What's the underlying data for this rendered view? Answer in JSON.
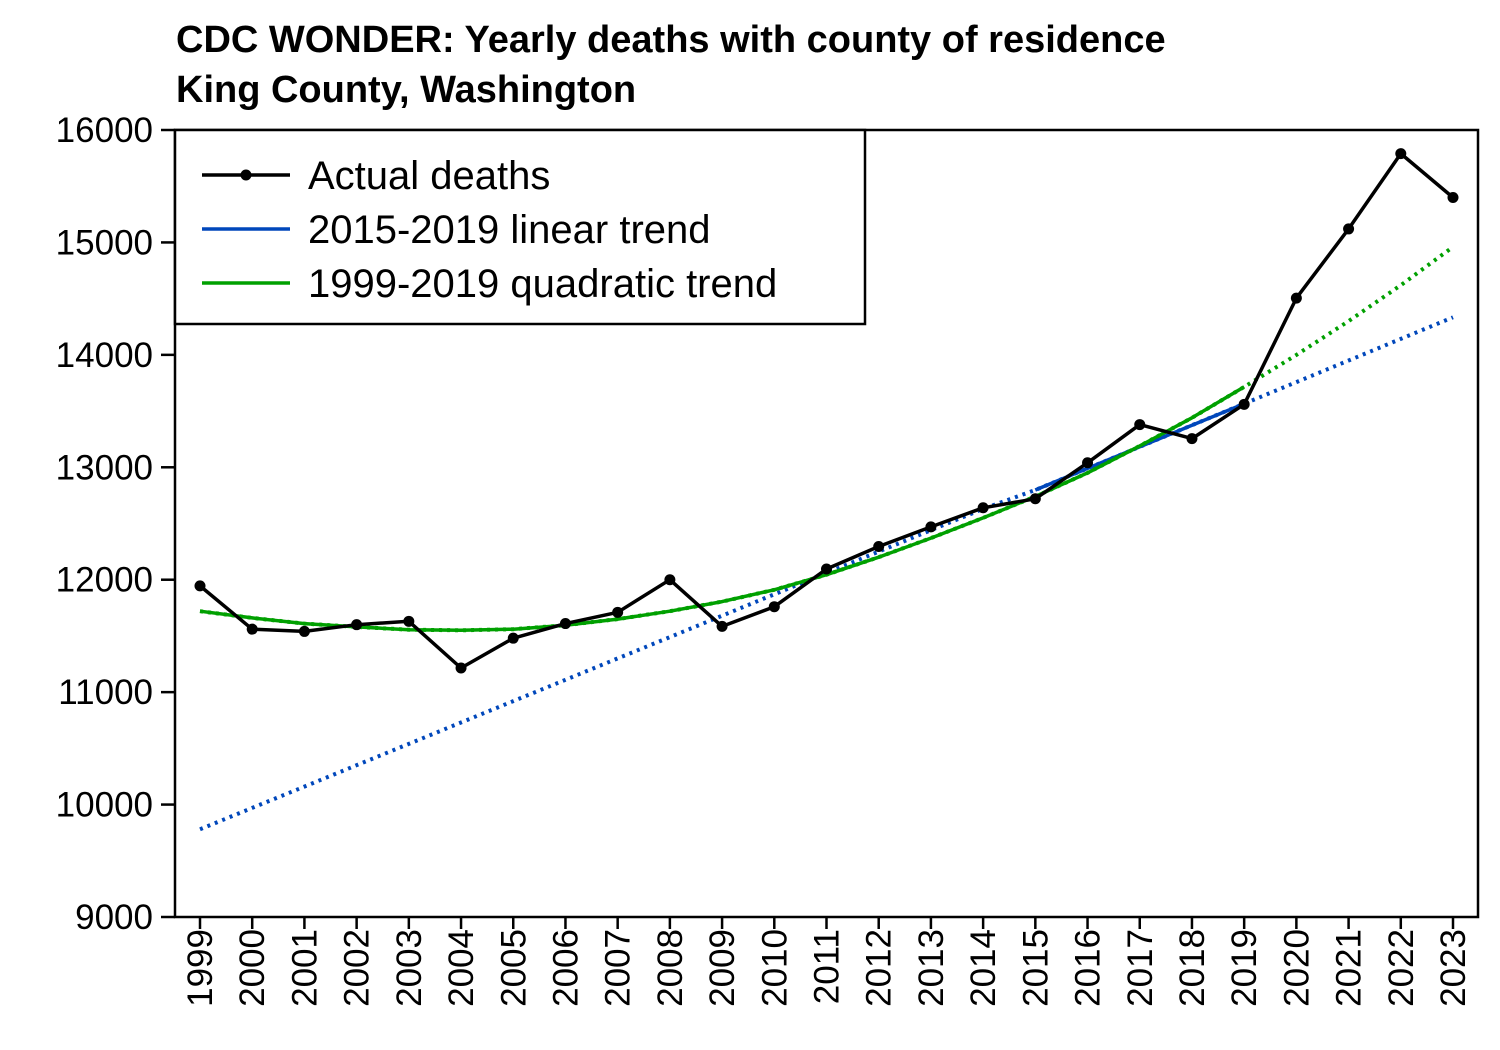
{
  "chart_data": {
    "type": "line",
    "title": "CDC WONDER: Yearly deaths with county of residence",
    "subtitle": "King County, Washington",
    "xlabel": "",
    "ylabel": "",
    "x": [
      1999,
      2000,
      2001,
      2002,
      2003,
      2004,
      2005,
      2006,
      2007,
      2008,
      2009,
      2010,
      2011,
      2012,
      2013,
      2014,
      2015,
      2016,
      2017,
      2018,
      2019,
      2020,
      2021,
      2022,
      2023
    ],
    "x_tick_labels": [
      "1999",
      "2000",
      "2001",
      "2002",
      "2003",
      "2004",
      "2005",
      "2006",
      "2007",
      "2008",
      "2009",
      "2010",
      "2011",
      "2012",
      "2013",
      "2014",
      "2015",
      "2016",
      "2017",
      "2018",
      "2019",
      "2020",
      "2021",
      "2022",
      "2023"
    ],
    "ylim": [
      9000,
      16000
    ],
    "y_ticks": [
      9000,
      10000,
      11000,
      12000,
      13000,
      14000,
      15000,
      16000
    ],
    "y_tick_labels": [
      "9000",
      "10000",
      "11000",
      "12000",
      "13000",
      "14000",
      "15000",
      "16000"
    ],
    "grid": false,
    "legend_position": "top-left",
    "series": [
      {
        "name": "Actual deaths",
        "color": "#000000",
        "style": "line-with-points",
        "values": [
          11945,
          11560,
          11540,
          11600,
          11630,
          11215,
          11480,
          11610,
          11710,
          12000,
          11585,
          11760,
          12095,
          12295,
          12470,
          12640,
          12720,
          13040,
          13380,
          13255,
          13560,
          14505,
          15120,
          15790,
          15400
        ]
      },
      {
        "name": "2015-2019 linear trend",
        "color": "#0047bb",
        "style": "solid-fit-dotted-extrapolation",
        "fit_range": [
          2015,
          2019
        ],
        "values": [
          9780,
          9970,
          10160,
          10350,
          10540,
          10730,
          10920,
          11110,
          11300,
          11490,
          11680,
          11870,
          12060,
          12250,
          12440,
          12630,
          12798,
          12990,
          13182,
          13374,
          13566,
          13758,
          13950,
          14142,
          14334
        ]
      },
      {
        "name": "1999-2019 quadratic trend",
        "color": "#00a000",
        "style": "solid-fit-dotted-extrapolation",
        "fit_range": [
          1999,
          2019
        ],
        "values": [
          11720,
          11660,
          11610,
          11580,
          11555,
          11550,
          11560,
          11595,
          11650,
          11720,
          11805,
          11910,
          12045,
          12200,
          12370,
          12550,
          12740,
          12950,
          13190,
          13440,
          13715,
          14000,
          14300,
          14620,
          14960
        ]
      }
    ]
  }
}
